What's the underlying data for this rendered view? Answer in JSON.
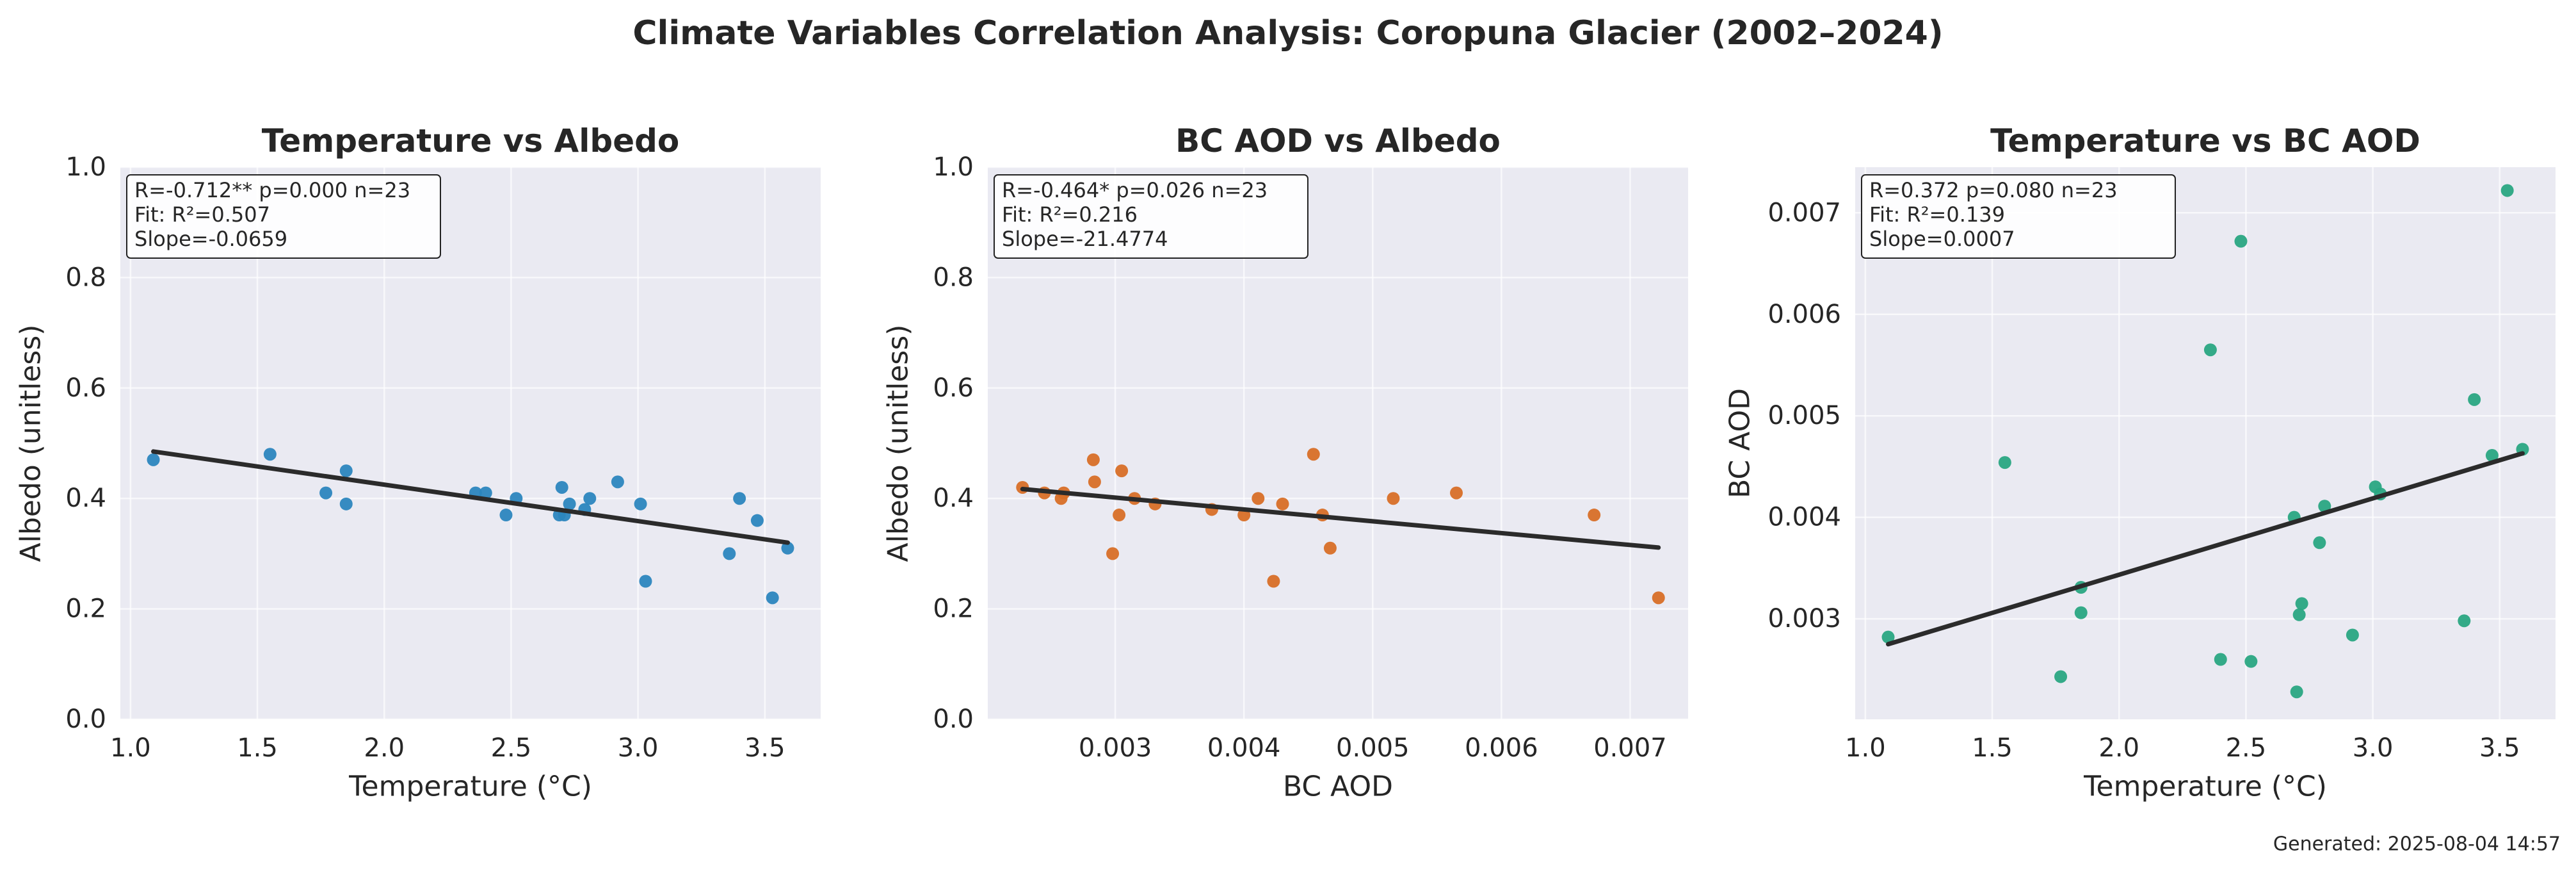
{
  "title": "Climate Variables Correlation Analysis: Coropuna Glacier (2002–2024)",
  "footer": "Generated: 2025-08-04 14:57",
  "chart_data": [
    {
      "type": "scatter",
      "title": "Temperature vs Albedo",
      "xlabel": "Temperature (°C)",
      "ylabel": "Albedo (unitless)",
      "xlim": [
        0.96,
        3.72
      ],
      "ylim": [
        0.0,
        1.0
      ],
      "xticks": [
        1.0,
        1.5,
        2.0,
        2.5,
        3.0,
        3.5
      ],
      "xtick_labels": [
        "1.0",
        "1.5",
        "2.0",
        "2.5",
        "3.0",
        "3.5"
      ],
      "yticks": [
        0.0,
        0.2,
        0.4,
        0.6,
        0.8,
        1.0
      ],
      "ytick_labels": [
        "0.0",
        "0.2",
        "0.4",
        "0.6",
        "0.8",
        "1.0"
      ],
      "color": "#2c86be",
      "points": [
        {
          "x": 1.09,
          "y": 0.47
        },
        {
          "x": 1.55,
          "y": 0.48
        },
        {
          "x": 1.77,
          "y": 0.41
        },
        {
          "x": 1.85,
          "y": 0.45
        },
        {
          "x": 1.85,
          "y": 0.39
        },
        {
          "x": 2.36,
          "y": 0.41
        },
        {
          "x": 2.4,
          "y": 0.41
        },
        {
          "x": 2.48,
          "y": 0.37
        },
        {
          "x": 2.52,
          "y": 0.4
        },
        {
          "x": 2.69,
          "y": 0.37
        },
        {
          "x": 2.7,
          "y": 0.42
        },
        {
          "x": 2.71,
          "y": 0.37
        },
        {
          "x": 2.73,
          "y": 0.39
        },
        {
          "x": 2.79,
          "y": 0.38
        },
        {
          "x": 2.81,
          "y": 0.4
        },
        {
          "x": 2.92,
          "y": 0.43
        },
        {
          "x": 3.01,
          "y": 0.39
        },
        {
          "x": 3.03,
          "y": 0.25
        },
        {
          "x": 3.36,
          "y": 0.3
        },
        {
          "x": 3.4,
          "y": 0.4
        },
        {
          "x": 3.47,
          "y": 0.36
        },
        {
          "x": 3.53,
          "y": 0.22
        },
        {
          "x": 3.59,
          "y": 0.31
        }
      ],
      "fit_line": {
        "x": [
          1.09,
          3.59
        ],
        "y": [
          0.485,
          0.32
        ]
      },
      "stats": [
        "R=-0.712**  p=0.000  n=23",
        "Fit: R²=0.507",
        "Slope=-0.0659"
      ]
    },
    {
      "type": "scatter",
      "title": "BC AOD vs Albedo",
      "xlabel": "BC AOD",
      "ylabel": "Albedo (unitless)",
      "xlim": [
        0.00201,
        0.00745
      ],
      "ylim": [
        0.0,
        1.0
      ],
      "xticks": [
        0.003,
        0.004,
        0.005,
        0.006,
        0.007
      ],
      "xtick_labels": [
        "0.003",
        "0.004",
        "0.005",
        "0.006",
        "0.007"
      ],
      "yticks": [
        0.0,
        0.2,
        0.4,
        0.6,
        0.8,
        1.0
      ],
      "ytick_labels": [
        "0.0",
        "0.2",
        "0.4",
        "0.6",
        "0.8",
        "1.0"
      ],
      "color": "#d86f27",
      "points": [
        {
          "x": 0.00228,
          "y": 0.42
        },
        {
          "x": 0.00245,
          "y": 0.41
        },
        {
          "x": 0.00258,
          "y": 0.4
        },
        {
          "x": 0.0026,
          "y": 0.41
        },
        {
          "x": 0.00283,
          "y": 0.47
        },
        {
          "x": 0.00284,
          "y": 0.43
        },
        {
          "x": 0.00298,
          "y": 0.3
        },
        {
          "x": 0.00303,
          "y": 0.37
        },
        {
          "x": 0.00305,
          "y": 0.45
        },
        {
          "x": 0.00315,
          "y": 0.4
        },
        {
          "x": 0.00331,
          "y": 0.39
        },
        {
          "x": 0.00375,
          "y": 0.38
        },
        {
          "x": 0.004,
          "y": 0.37
        },
        {
          "x": 0.00411,
          "y": 0.4
        },
        {
          "x": 0.00423,
          "y": 0.25
        },
        {
          "x": 0.0043,
          "y": 0.39
        },
        {
          "x": 0.00454,
          "y": 0.48
        },
        {
          "x": 0.00461,
          "y": 0.37
        },
        {
          "x": 0.00467,
          "y": 0.31
        },
        {
          "x": 0.00516,
          "y": 0.4
        },
        {
          "x": 0.00565,
          "y": 0.41
        },
        {
          "x": 0.00672,
          "y": 0.37
        },
        {
          "x": 0.00722,
          "y": 0.22
        }
      ],
      "fit_line": {
        "x": [
          0.00228,
          0.00722
        ],
        "y": [
          0.417,
          0.311
        ]
      },
      "stats": [
        "R=-0.464*  p=0.026  n=23",
        "Fit: R²=0.216",
        "Slope=-21.4774"
      ]
    },
    {
      "type": "scatter",
      "title": "Temperature vs BC AOD",
      "xlabel": "Temperature (°C)",
      "ylabel": "BC AOD",
      "xlim": [
        0.96,
        3.72
      ],
      "ylim": [
        0.00201,
        0.00745
      ],
      "xticks": [
        1.0,
        1.5,
        2.0,
        2.5,
        3.0,
        3.5
      ],
      "xtick_labels": [
        "1.0",
        "1.5",
        "2.0",
        "2.5",
        "3.0",
        "3.5"
      ],
      "yticks": [
        0.003,
        0.004,
        0.005,
        0.006,
        0.007
      ],
      "ytick_labels": [
        "0.003",
        "0.004",
        "0.005",
        "0.006",
        "0.007"
      ],
      "color": "#2aa682",
      "points": [
        {
          "x": 1.09,
          "y": 0.00282
        },
        {
          "x": 1.55,
          "y": 0.00454
        },
        {
          "x": 1.77,
          "y": 0.00243
        },
        {
          "x": 1.85,
          "y": 0.00331
        },
        {
          "x": 1.85,
          "y": 0.00306
        },
        {
          "x": 2.36,
          "y": 0.00565
        },
        {
          "x": 2.4,
          "y": 0.0026
        },
        {
          "x": 2.48,
          "y": 0.00672
        },
        {
          "x": 2.52,
          "y": 0.00258
        },
        {
          "x": 2.69,
          "y": 0.004
        },
        {
          "x": 2.7,
          "y": 0.00228
        },
        {
          "x": 2.71,
          "y": 0.00304
        },
        {
          "x": 2.72,
          "y": 0.00315
        },
        {
          "x": 2.79,
          "y": 0.00375
        },
        {
          "x": 2.81,
          "y": 0.00411
        },
        {
          "x": 2.92,
          "y": 0.00284
        },
        {
          "x": 3.01,
          "y": 0.0043
        },
        {
          "x": 3.03,
          "y": 0.00423
        },
        {
          "x": 3.36,
          "y": 0.00298
        },
        {
          "x": 3.4,
          "y": 0.00516
        },
        {
          "x": 3.47,
          "y": 0.00461
        },
        {
          "x": 3.53,
          "y": 0.00722
        },
        {
          "x": 3.59,
          "y": 0.00467
        }
      ],
      "fit_line": {
        "x": [
          1.09,
          3.59
        ],
        "y": [
          0.00275,
          0.00463
        ]
      },
      "stats": [
        "R=0.372  p=0.080  n=23",
        "Fit: R²=0.139",
        "Slope=0.0007"
      ]
    }
  ]
}
